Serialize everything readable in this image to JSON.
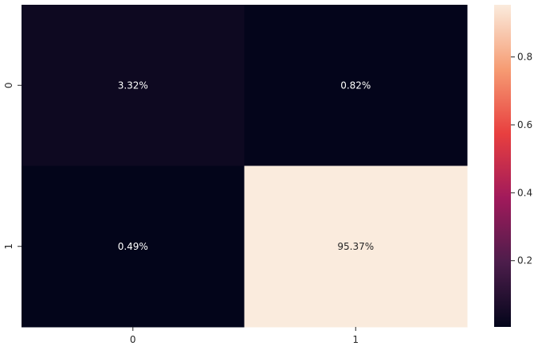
{
  "chart_data": {
    "type": "heatmap",
    "title": "",
    "xlabel": "",
    "ylabel": "",
    "x_categories": [
      "0",
      "1"
    ],
    "y_categories": [
      "0",
      "1"
    ],
    "values": [
      [
        0.0332,
        0.0082
      ],
      [
        0.0049,
        0.9537
      ]
    ],
    "annotations": [
      [
        "3.32%",
        "0.82%"
      ],
      [
        "0.49%",
        "95.37%"
      ]
    ],
    "colorbar": {
      "range": [
        0.0049,
        0.9537
      ],
      "ticks": [
        0.2,
        0.4,
        0.6,
        0.8
      ],
      "tick_labels": [
        "0.2",
        "0.4",
        "0.6",
        "0.8"
      ],
      "colormap": "rocket"
    },
    "colors": {
      "colormap_stops": [
        "#03051a",
        "#4c1d4b",
        "#a11a5b",
        "#e83f3f",
        "#f69c73",
        "#faebdd"
      ],
      "annotation_dark_bg": "#ffffff",
      "annotation_light_bg": "#262626"
    },
    "grid": false,
    "legend": "none"
  }
}
